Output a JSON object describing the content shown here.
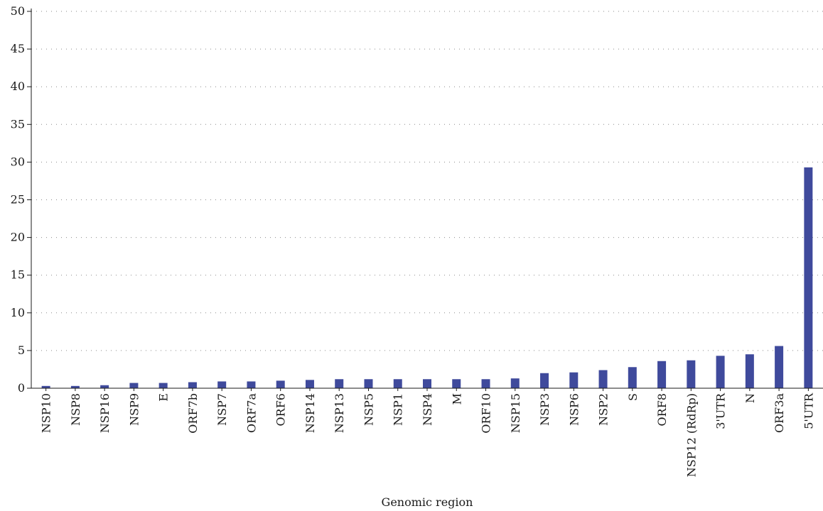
{
  "chart_data": {
    "type": "bar",
    "title": "",
    "xlabel": "Genomic region",
    "ylabel": "",
    "ylim": [
      0,
      50
    ],
    "yticks": [
      0,
      5,
      10,
      15,
      20,
      25,
      30,
      35,
      40,
      45,
      50
    ],
    "grid": "horizontal dotted",
    "bar_color": "#3f4a9c",
    "categories": [
      "NSP10",
      "NSP8",
      "NSP16",
      "NSP9",
      "E",
      "ORF7b",
      "NSP7",
      "ORF7a",
      "ORF6",
      "NSP14",
      "NSP13",
      "NSP5",
      "NSP1",
      "NSP4",
      "M",
      "ORF10",
      "NSP15",
      "NSP3",
      "NSP6",
      "NSP2",
      "S",
      "ORF8",
      "NSP12 (RdRp)",
      "3'UTR",
      "N",
      "ORF3a",
      "5'UTR"
    ],
    "values": [
      0.3,
      0.3,
      0.4,
      0.7,
      0.7,
      0.8,
      0.9,
      0.9,
      1.0,
      1.1,
      1.2,
      1.2,
      1.2,
      1.2,
      1.2,
      1.2,
      1.3,
      2.0,
      2.1,
      2.4,
      2.8,
      3.6,
      3.7,
      4.3,
      4.5,
      5.6,
      29.3
    ]
  }
}
